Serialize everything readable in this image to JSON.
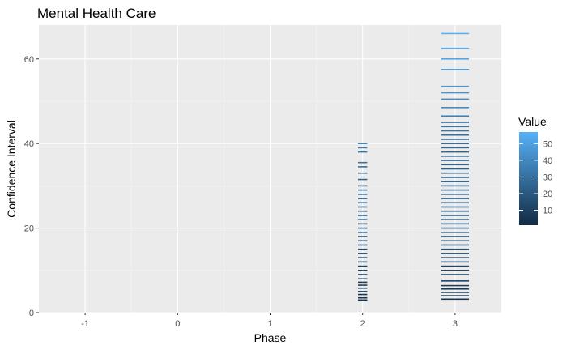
{
  "chart_data": {
    "type": "heatmap",
    "title": "Mental Health Care",
    "xlabel": "Phase",
    "ylabel": "Confidence Interval",
    "xlim": [
      -1.5,
      3.5
    ],
    "ylim": [
      0,
      68
    ],
    "x_ticks": [
      -1,
      0,
      1,
      2,
      3
    ],
    "y_ticks": [
      0,
      20,
      40,
      60
    ],
    "x_tick_labels": [
      "-1",
      "0",
      "1",
      "2",
      "3"
    ],
    "y_tick_labels": [
      "0",
      "20",
      "40",
      "60"
    ],
    "grid": true,
    "legend": {
      "title": "Value",
      "position": "right",
      "range": [
        1,
        57
      ],
      "ticks": [
        10,
        20,
        30,
        40,
        50
      ],
      "tick_labels": [
        "10",
        "20",
        "30",
        "40",
        "50"
      ],
      "color_low": "#132B43",
      "color_high": "#56B1F7"
    },
    "columns": [
      {
        "x": 2,
        "x_width": 0.1,
        "cells": [
          {
            "y": 3,
            "value": 3
          },
          {
            "y": 3.5,
            "value": 4
          },
          {
            "y": 4.3,
            "value": 5
          },
          {
            "y": 5,
            "value": 6
          },
          {
            "y": 5.8,
            "value": 7
          },
          {
            "y": 6.5,
            "value": 8
          },
          {
            "y": 7.2,
            "value": 9
          },
          {
            "y": 8,
            "value": 10
          },
          {
            "y": 9,
            "value": 9
          },
          {
            "y": 10,
            "value": 11
          },
          {
            "y": 11,
            "value": 10
          },
          {
            "y": 12,
            "value": 12
          },
          {
            "y": 13,
            "value": 11
          },
          {
            "y": 14,
            "value": 13
          },
          {
            "y": 15,
            "value": 12
          },
          {
            "y": 16,
            "value": 14
          },
          {
            "y": 17,
            "value": 13
          },
          {
            "y": 18,
            "value": 15
          },
          {
            "y": 19,
            "value": 14
          },
          {
            "y": 20,
            "value": 16
          },
          {
            "y": 21,
            "value": 15
          },
          {
            "y": 22,
            "value": 17
          },
          {
            "y": 23,
            "value": 16
          },
          {
            "y": 24,
            "value": 18
          },
          {
            "y": 25,
            "value": 17
          },
          {
            "y": 26,
            "value": 19
          },
          {
            "y": 27,
            "value": 18
          },
          {
            "y": 28,
            "value": 20
          },
          {
            "y": 29,
            "value": 21
          },
          {
            "y": 30,
            "value": 22
          },
          {
            "y": 31.5,
            "value": 24
          },
          {
            "y": 33,
            "value": 26
          },
          {
            "y": 34.5,
            "value": 28
          },
          {
            "y": 35.5,
            "value": 30
          },
          {
            "y": 38,
            "value": 33
          },
          {
            "y": 39,
            "value": 34
          },
          {
            "y": 40,
            "value": 36
          }
        ]
      },
      {
        "x": 3,
        "x_width": 0.3,
        "cells": [
          {
            "y": 3.2,
            "value": 4
          },
          {
            "y": 4,
            "value": 5
          },
          {
            "y": 4.8,
            "value": 6
          },
          {
            "y": 5.6,
            "value": 7
          },
          {
            "y": 6.4,
            "value": 8
          },
          {
            "y": 7.5,
            "value": 9
          },
          {
            "y": 9,
            "value": 10
          },
          {
            "y": 10,
            "value": 11
          },
          {
            "y": 11,
            "value": 12
          },
          {
            "y": 12,
            "value": 13
          },
          {
            "y": 13,
            "value": 14
          },
          {
            "y": 14,
            "value": 13
          },
          {
            "y": 15,
            "value": 15
          },
          {
            "y": 16,
            "value": 14
          },
          {
            "y": 17,
            "value": 16
          },
          {
            "y": 18,
            "value": 15
          },
          {
            "y": 19,
            "value": 17
          },
          {
            "y": 20,
            "value": 16
          },
          {
            "y": 21,
            "value": 18
          },
          {
            "y": 22,
            "value": 17
          },
          {
            "y": 23,
            "value": 19
          },
          {
            "y": 24,
            "value": 18
          },
          {
            "y": 25,
            "value": 20
          },
          {
            "y": 26,
            "value": 19
          },
          {
            "y": 27,
            "value": 21
          },
          {
            "y": 28,
            "value": 20
          },
          {
            "y": 29,
            "value": 22
          },
          {
            "y": 30,
            "value": 21
          },
          {
            "y": 31,
            "value": 23
          },
          {
            "y": 32,
            "value": 22
          },
          {
            "y": 33,
            "value": 24
          },
          {
            "y": 34,
            "value": 23
          },
          {
            "y": 35,
            "value": 25
          },
          {
            "y": 36,
            "value": 24
          },
          {
            "y": 37,
            "value": 26
          },
          {
            "y": 38,
            "value": 25
          },
          {
            "y": 39,
            "value": 27
          },
          {
            "y": 40,
            "value": 26
          },
          {
            "y": 41,
            "value": 28
          },
          {
            "y": 42,
            "value": 30
          },
          {
            "y": 43,
            "value": 31
          },
          {
            "y": 44,
            "value": 32
          },
          {
            "y": 45,
            "value": 33
          },
          {
            "y": 46.5,
            "value": 36
          },
          {
            "y": 48.5,
            "value": 40
          },
          {
            "y": 50.5,
            "value": 42
          },
          {
            "y": 52,
            "value": 44
          },
          {
            "y": 53.5,
            "value": 45
          },
          {
            "y": 57.5,
            "value": 50
          },
          {
            "y": 60,
            "value": 52
          },
          {
            "y": 62.5,
            "value": 54
          },
          {
            "y": 66,
            "value": 57
          }
        ]
      }
    ]
  }
}
